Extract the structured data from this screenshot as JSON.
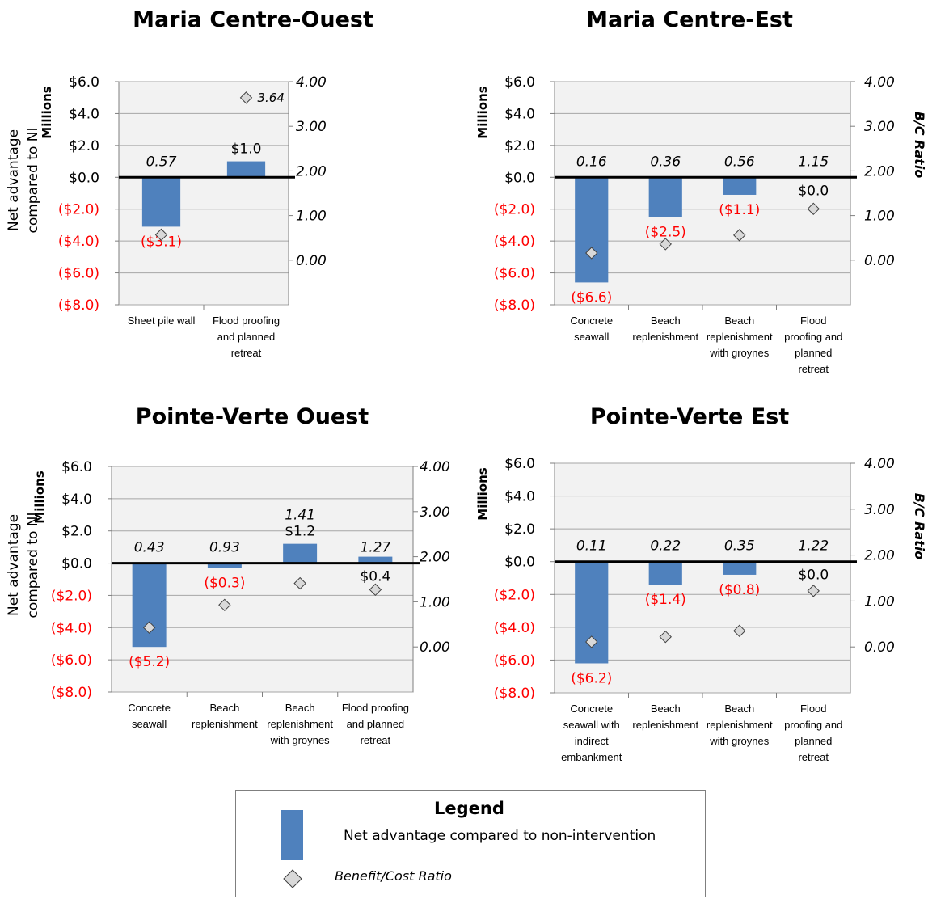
{
  "chart_data": [
    {
      "type": "bar",
      "title": "Maria Centre-Ouest",
      "ylabel": "Net advantage compared to NI",
      "yunit": "Millions",
      "y2label": "",
      "ylim": [
        -8,
        6
      ],
      "y2lim": [
        -1,
        4
      ],
      "yticks": [
        "($8.0)",
        "($6.0)",
        "($4.0)",
        "($2.0)",
        "$0.0",
        "$2.0",
        "$4.0",
        "$6.0"
      ],
      "y2ticks": [
        "0.00",
        "1.00",
        "2.00",
        "3.00",
        "4.00"
      ],
      "categories": [
        "Sheet pile wall",
        "Flood proofing and planned retreat"
      ],
      "series": [
        {
          "name": "Net advantage compared to non-intervention",
          "values": [
            -3.1,
            1.0
          ],
          "labels": [
            "($3.1)",
            "$1.0"
          ]
        },
        {
          "name": "Benefit/Cost Ratio",
          "values": [
            0.57,
            3.64
          ],
          "labels": [
            "0.57",
            "3.64"
          ]
        }
      ],
      "grid": true
    },
    {
      "type": "bar",
      "title": "Maria Centre-Est",
      "ylabel": "",
      "yunit": "Millions",
      "y2label": "B/C Ratio",
      "ylim": [
        -8,
        6
      ],
      "y2lim": [
        -1,
        4
      ],
      "yticks": [
        "($8.0)",
        "($6.0)",
        "($4.0)",
        "($2.0)",
        "$0.0",
        "$2.0",
        "$4.0",
        "$6.0"
      ],
      "y2ticks": [
        "0.00",
        "1.00",
        "2.00",
        "3.00",
        "4.00"
      ],
      "categories": [
        "Concrete seawall",
        "Beach replenishment",
        "Beach replenishment with groynes",
        "Flood proofing and planned retreat"
      ],
      "series": [
        {
          "name": "Net advantage compared to non-intervention",
          "values": [
            -6.6,
            -2.5,
            -1.1,
            0.0
          ],
          "labels": [
            "($6.6)",
            "($2.5)",
            "($1.1)",
            "$0.0"
          ]
        },
        {
          "name": "Benefit/Cost Ratio",
          "values": [
            0.16,
            0.36,
            0.56,
            1.15
          ],
          "labels": [
            "0.16",
            "0.36",
            "0.56",
            "1.15"
          ]
        }
      ],
      "grid": true
    },
    {
      "type": "bar",
      "title": "Pointe-Verte Ouest",
      "ylabel": "Net advantage compared to NI",
      "yunit": "Millions",
      "y2label": "",
      "ylim": [
        -8,
        6
      ],
      "y2lim": [
        -1,
        4
      ],
      "yticks": [
        "($8.0)",
        "($6.0)",
        "($4.0)",
        "($2.0)",
        "$0.0",
        "$2.0",
        "$4.0",
        "$6.0"
      ],
      "y2ticks": [
        "0.00",
        "1.00",
        "2.00",
        "3.00",
        "4.00"
      ],
      "categories": [
        "Concrete seawall",
        "Beach replenishment",
        "Beach replenishment with groynes",
        "Flood proofing and planned retreat"
      ],
      "series": [
        {
          "name": "Net advantage compared to non-intervention",
          "values": [
            -5.2,
            -0.3,
            1.2,
            0.4
          ],
          "labels": [
            "($5.2)",
            "($0.3)",
            "$1.2",
            "$0.4"
          ]
        },
        {
          "name": "Benefit/Cost Ratio",
          "values": [
            0.43,
            0.93,
            1.41,
            1.27
          ],
          "labels": [
            "0.43",
            "0.93",
            "1.41",
            "1.27"
          ]
        }
      ],
      "grid": true
    },
    {
      "type": "bar",
      "title": "Pointe-Verte Est",
      "ylabel": "",
      "yunit": "Millions",
      "y2label": "B/C Ratio",
      "ylim": [
        -8,
        6
      ],
      "y2lim": [
        -1,
        4
      ],
      "yticks": [
        "($8.0)",
        "($6.0)",
        "($4.0)",
        "($2.0)",
        "$0.0",
        "$2.0",
        "$4.0",
        "$6.0"
      ],
      "y2ticks": [
        "0.00",
        "1.00",
        "2.00",
        "3.00",
        "4.00"
      ],
      "categories": [
        "Concrete seawall with indirect embankment",
        "Beach replenishment",
        "Beach replenishment with groynes",
        "Flood proofing and planned retreat"
      ],
      "series": [
        {
          "name": "Net advantage compared to non-intervention",
          "values": [
            -6.2,
            -1.4,
            -0.8,
            0.0
          ],
          "labels": [
            "($6.2)",
            "($1.4)",
            "($0.8)",
            "$0.0"
          ]
        },
        {
          "name": "Benefit/Cost Ratio",
          "values": [
            0.11,
            0.22,
            0.35,
            1.22
          ],
          "labels": [
            "0.11",
            "0.22",
            "0.35",
            "1.22"
          ]
        }
      ],
      "grid": true
    }
  ],
  "colors": {
    "bar": "#4f81bd",
    "plot_bg": "#f2f2f2",
    "negative_label": "#ff0000",
    "diamond_fill": "#d9d9d9",
    "zero_line": "#000000",
    "grid": "#a6a6a6"
  },
  "legend": {
    "title": "Legend",
    "bar_label": "Net advantage  compared to non-intervention",
    "diamond_label": "Benefit/Cost Ratio"
  }
}
